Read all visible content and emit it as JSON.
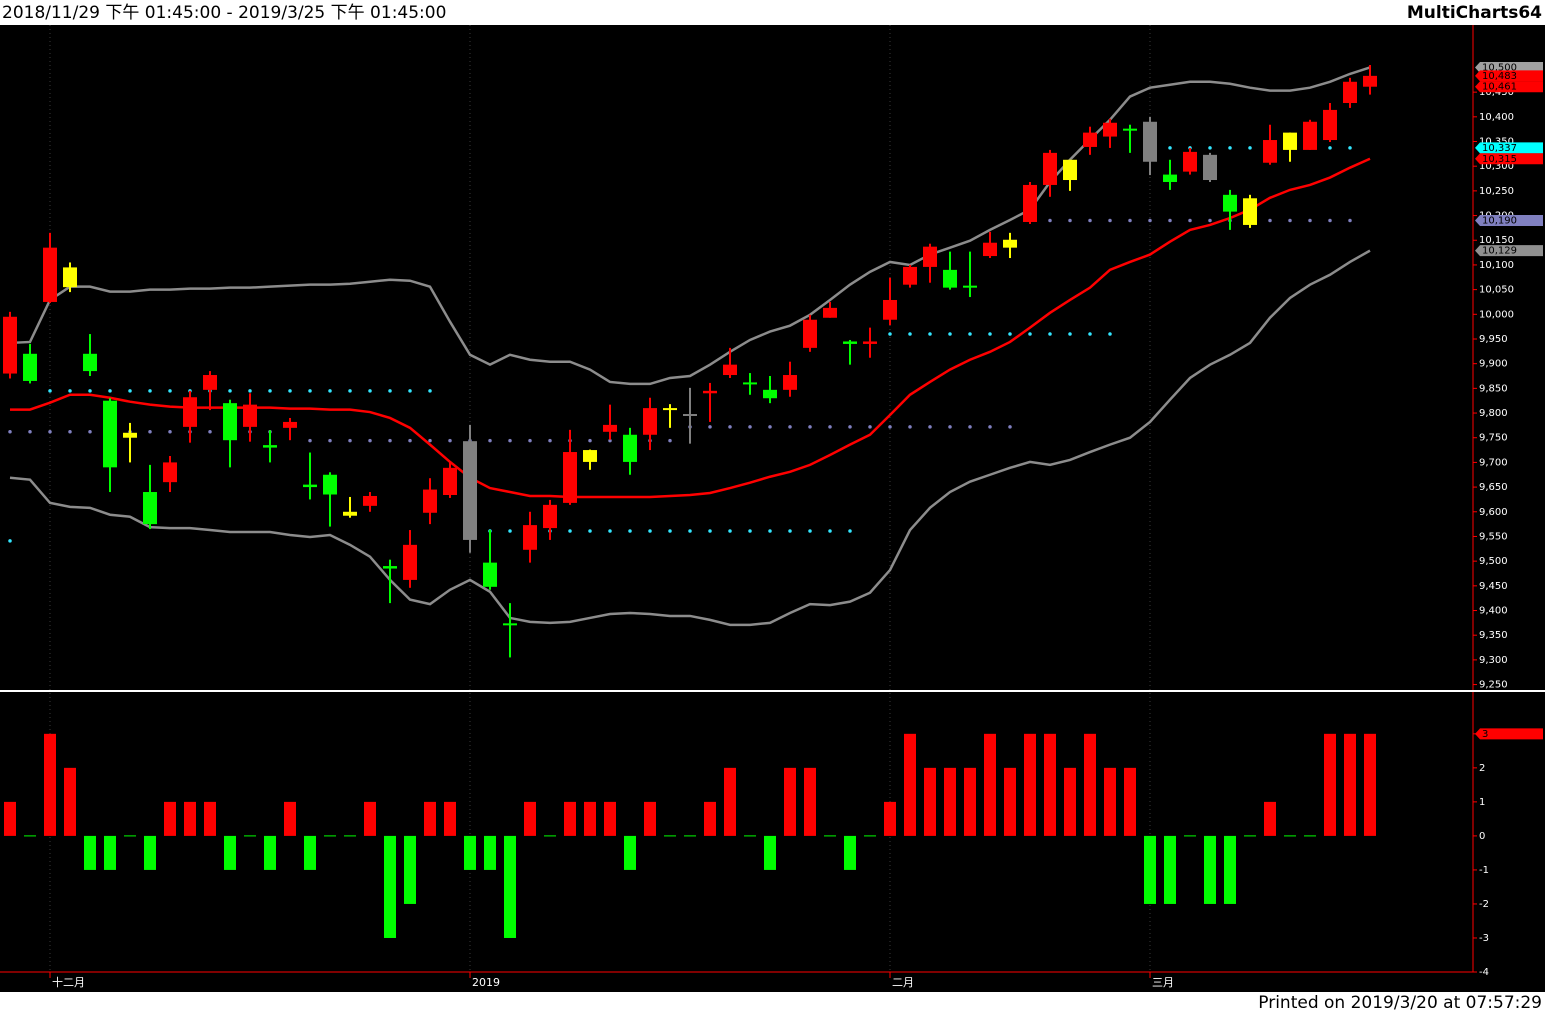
{
  "header": {
    "range": "2018/11/29 下午 01:45:00 - 2019/3/25 下午 01:45:00",
    "app": "MultiCharts64"
  },
  "footer": {
    "printed": "Printed on 2019/3/20 at 07:57:29"
  },
  "chart_data": [
    {
      "type": "candlestick",
      "categories": [
        null,
        null,
        "十二月",
        null,
        null,
        null,
        null,
        null,
        null,
        null,
        null,
        null,
        null,
        null,
        null,
        null,
        null,
        null,
        null,
        null,
        null,
        null,
        null,
        "2019",
        null,
        null,
        null,
        null,
        null,
        null,
        null,
        null,
        null,
        null,
        null,
        null,
        null,
        null,
        null,
        null,
        null,
        null,
        null,
        null,
        "二月",
        null,
        null,
        null,
        null,
        null,
        null,
        null,
        null,
        null,
        null,
        null,
        null,
        "三月",
        null,
        null,
        null,
        null,
        null,
        null,
        null,
        null,
        null,
        null,
        null
      ],
      "open": [
        9880,
        9920,
        10025,
        10055,
        9920,
        9825,
        9760,
        9640,
        9660,
        9772,
        9847,
        9820,
        9772,
        9735,
        9770,
        9655,
        9675,
        9592,
        9612,
        9490,
        9462,
        9598,
        9634,
        9743,
        9497,
        9375,
        9523,
        9567,
        9618,
        9701,
        9762,
        9756,
        9756,
        9805,
        9798,
        9840,
        9877,
        9862,
        9847,
        9847,
        9932,
        9993,
        9945,
        9940,
        9989,
        10060,
        10096,
        10090,
        10056,
        10118,
        10135,
        10187,
        10262,
        10272,
        10339,
        10360,
        10374,
        10390,
        10283,
        10289,
        10323,
        10242,
        10235,
        10307,
        10333,
        10333,
        10353,
        10428,
        10461
      ],
      "high": [
        10005,
        9940,
        10165,
        10105,
        9960,
        9830,
        9780,
        9695,
        9713,
        9845,
        9885,
        9827,
        9840,
        9765,
        9790,
        9720,
        9680,
        9630,
        9640,
        9503,
        9563,
        9668,
        9700,
        9776,
        9563,
        9415,
        9600,
        9624,
        9766,
        9726,
        9817,
        9770,
        9831,
        9818,
        9851,
        9861,
        9932,
        9881,
        9875,
        9904,
        9999,
        10025,
        9948,
        9973,
        10074,
        10100,
        10143,
        10127,
        10127,
        10167,
        10165,
        10268,
        10333,
        10313,
        10380,
        10396,
        10384,
        10400,
        10313,
        10337,
        10327,
        10252,
        10242,
        10384,
        10368,
        10394,
        10428,
        10479,
        10505
      ],
      "low": [
        9870,
        9860,
        10023,
        10045,
        9875,
        9640,
        9700,
        9565,
        9640,
        9740,
        9806,
        9690,
        9742,
        9700,
        9745,
        9625,
        9570,
        9588,
        9600,
        9415,
        9446,
        9575,
        9628,
        9517,
        9442,
        9305,
        9497,
        9543,
        9614,
        9685,
        9746,
        9675,
        9725,
        9770,
        9738,
        9782,
        9871,
        9837,
        9820,
        9833,
        9924,
        9993,
        9898,
        9912,
        9978,
        10054,
        10064,
        10050,
        10035,
        10114,
        10114,
        10183,
        10238,
        10250,
        10323,
        10337,
        10327,
        10282,
        10252,
        10283,
        10268,
        10171,
        10175,
        10303,
        10309,
        10333,
        10349,
        10418,
        10445
      ],
      "close": [
        9995,
        9865,
        10135,
        10095,
        9885,
        9690,
        9750,
        9575,
        9700,
        9832,
        9877,
        9745,
        9817,
        9730,
        9782,
        9650,
        9635,
        9600,
        9632,
        9485,
        9533,
        9645,
        9689,
        9543,
        9448,
        9372,
        9573,
        9614,
        9721,
        9725,
        9776,
        9701,
        9810,
        9808,
        9796,
        9845,
        9898,
        9860,
        9830,
        9877,
        9989,
        10013,
        9940,
        9945,
        10029,
        10096,
        10137,
        10054,
        10056,
        10145,
        10151,
        10262,
        10327,
        10313,
        10368,
        10388,
        10374,
        10309,
        10268,
        10329,
        10272,
        10208,
        10181,
        10353,
        10368,
        10390,
        10414,
        10471,
        10483
      ],
      "colors": [
        "#ff0000",
        "#00ff00",
        "#ff0000",
        "#ffff00",
        "#00ff00",
        "#00ff00",
        "#ffff00",
        "#00ff00",
        "#ff0000",
        "#ff0000",
        "#ff0000",
        "#00ff00",
        "#ff0000",
        "#00ff00",
        "#ff0000",
        "#00ff00",
        "#00ff00",
        "#ffff00",
        "#ff0000",
        "#00ff00",
        "#ff0000",
        "#ff0000",
        "#ff0000",
        "#808080",
        "#00ff00",
        "#00ff00",
        "#ff0000",
        "#ff0000",
        "#ff0000",
        "#ffff00",
        "#ff0000",
        "#00ff00",
        "#ff0000",
        "#ffff00",
        "#808080",
        "#ff0000",
        "#ff0000",
        "#00ff00",
        "#00ff00",
        "#ff0000",
        "#ff0000",
        "#ff0000",
        "#00ff00",
        "#ff0000",
        "#ff0000",
        "#ff0000",
        "#ff0000",
        "#00ff00",
        "#00ff00",
        "#ff0000",
        "#ffff00",
        "#ff0000",
        "#ff0000",
        "#ffff00",
        "#ff0000",
        "#ff0000",
        "#00ff00",
        "#808080",
        "#00ff00",
        "#ff0000",
        "#808080",
        "#00ff00",
        "#ffff00",
        "#ff0000",
        "#ffff00",
        "#ff0000",
        "#ff0000",
        "#ff0000",
        "#ff0000"
      ],
      "lines": [
        {
          "color": "#8c8c8c",
          "values": [
            9942,
            9944,
            10029,
            10056,
            10056,
            10046,
            10046,
            10050,
            10050,
            10052,
            10052,
            10054,
            10054,
            10056,
            10058,
            10060,
            10060,
            10062,
            10066,
            10070,
            10068,
            10056,
            9985,
            9918,
            9898,
            9918,
            9908,
            9904,
            9904,
            9888,
            9863,
            9859,
            9859,
            9871,
            9875,
            9898,
            9924,
            9948,
            9965,
            9977,
            9999,
            10029,
            10060,
            10086,
            10106,
            10100,
            10121,
            10135,
            10149,
            10171,
            10191,
            10212,
            10268,
            10313,
            10354,
            10394,
            10441,
            10459,
            10465,
            10471,
            10471,
            10467,
            10459,
            10453,
            10453,
            10459,
            10471,
            10487,
            10500
          ]
        },
        {
          "color": "#ff0000",
          "values": [
            9807,
            9807,
            9821,
            9837,
            9837,
            9831,
            9823,
            9817,
            9813,
            9811,
            9811,
            9811,
            9811,
            9811,
            9809,
            9809,
            9807,
            9807,
            9802,
            9790,
            9770,
            9736,
            9701,
            9669,
            9648,
            9640,
            9632,
            9632,
            9630,
            9630,
            9630,
            9630,
            9630,
            9632,
            9634,
            9638,
            9648,
            9659,
            9671,
            9681,
            9695,
            9715,
            9736,
            9756,
            9796,
            9837,
            9863,
            9888,
            9908,
            9924,
            9944,
            9973,
            10003,
            10029,
            10054,
            10090,
            10106,
            10121,
            10147,
            10171,
            10181,
            10195,
            10212,
            10236,
            10252,
            10262,
            10277,
            10297,
            10315
          ]
        },
        {
          "color": "#8c8c8c",
          "values": [
            9669,
            9665,
            9618,
            9610,
            9608,
            9594,
            9590,
            9569,
            9567,
            9567,
            9563,
            9559,
            9559,
            9559,
            9553,
            9549,
            9553,
            9533,
            9509,
            9462,
            9422,
            9413,
            9442,
            9462,
            9438,
            9385,
            9377,
            9375,
            9377,
            9385,
            9393,
            9395,
            9393,
            9389,
            9389,
            9381,
            9371,
            9371,
            9375,
            9395,
            9413,
            9411,
            9418,
            9436,
            9482,
            9563,
            9608,
            9640,
            9661,
            9675,
            9689,
            9701,
            9695,
            9705,
            9721,
            9736,
            9750,
            9782,
            9827,
            9871,
            9898,
            9918,
            9942,
            9993,
            10033,
            10060,
            10080,
            10106,
            10129
          ]
        }
      ],
      "levels": [
        {
          "value": 9541,
          "from": 0,
          "to": 1,
          "color": "#33e6ff"
        },
        {
          "value": 9845,
          "from": 2,
          "to": 22,
          "color": "#33e6ff"
        },
        {
          "value": 9762,
          "from": 0,
          "to": 14,
          "color": "#8080c0"
        },
        {
          "value": 9744,
          "from": 15,
          "to": 34,
          "color": "#8080c0"
        },
        {
          "value": 9561,
          "from": 24,
          "to": 43,
          "color": "#33e6ff"
        },
        {
          "value": 9772,
          "from": 34,
          "to": 51,
          "color": "#8080c0"
        },
        {
          "value": 9960,
          "from": 44,
          "to": 56,
          "color": "#33e6ff"
        },
        {
          "value": 10190,
          "from": 51,
          "to": 68,
          "color": "#8080c0"
        },
        {
          "value": 10337,
          "from": 57,
          "to": 68,
          "color": "#33e6ff"
        }
      ],
      "price_markers": [
        {
          "value": 10500,
          "label": "10,500",
          "color": "#a0a0a0"
        },
        {
          "value": 10483,
          "label": "10,483",
          "color": "#ff0000"
        },
        {
          "value": 10461,
          "label": "10,461",
          "color": "#ff0000"
        },
        {
          "value": 10337,
          "label": "10,337",
          "color": "#00ffff"
        },
        {
          "value": 10315,
          "label": "10,315",
          "color": "#ff0000"
        },
        {
          "value": 10190,
          "label": "10,190",
          "color": "#8080c0"
        },
        {
          "value": 10129,
          "label": "10,129",
          "color": "#909090"
        }
      ],
      "ylim": [
        9239,
        10586
      ],
      "yticks": [
        {
          "value": 9250,
          "label": "9,250"
        },
        {
          "value": 9300,
          "label": "9,300"
        },
        {
          "value": 9350,
          "label": "9,350"
        },
        {
          "value": 9400,
          "label": "9,400"
        },
        {
          "value": 9450,
          "label": "9,450"
        },
        {
          "value": 9500,
          "label": "9,500"
        },
        {
          "value": 9550,
          "label": "9,550"
        },
        {
          "value": 9600,
          "label": "9,600"
        },
        {
          "value": 9650,
          "label": "9,650"
        },
        {
          "value": 9700,
          "label": "9,700"
        },
        {
          "value": 9750,
          "label": "9,750"
        },
        {
          "value": 9800,
          "label": "9,800"
        },
        {
          "value": 9850,
          "label": "9,850"
        },
        {
          "value": 9900,
          "label": "9,900"
        },
        {
          "value": 9950,
          "label": "9,950"
        },
        {
          "value": 10000,
          "label": "10,000"
        },
        {
          "value": 10050,
          "label": "10,050"
        },
        {
          "value": 10100,
          "label": "10,100"
        },
        {
          "value": 10150,
          "label": "10,150"
        },
        {
          "value": 10200,
          "label": "10,200"
        },
        {
          "value": 10250,
          "label": "10,250"
        },
        {
          "value": 10300,
          "label": "10,300"
        },
        {
          "value": 10350,
          "label": "10,350"
        },
        {
          "value": 10400,
          "label": "10,400"
        },
        {
          "value": 10450,
          "label": "10,450"
        }
      ]
    },
    {
      "type": "bar",
      "values": [
        1,
        0,
        3,
        2,
        -1,
        -1,
        0,
        -1,
        1,
        1,
        1,
        -1,
        0,
        -1,
        1,
        -1,
        0,
        0,
        1,
        -3,
        -2,
        1,
        1,
        -1,
        -1,
        -3,
        1,
        0,
        1,
        1,
        1,
        -1,
        1,
        0,
        0,
        1,
        2,
        0,
        -1,
        2,
        2,
        0,
        -1,
        0,
        1,
        3,
        2,
        2,
        2,
        3,
        2,
        3,
        3,
        2,
        3,
        2,
        2,
        -2,
        -2,
        0,
        -2,
        -2,
        0,
        1,
        0,
        0,
        3,
        3,
        3
      ],
      "up_color": "#ff0000",
      "down_color": "#00ff00",
      "last_marker": {
        "value": 3,
        "color": "#ff0000"
      },
      "ylim": [
        -4,
        4.2
      ],
      "yticks": [
        3,
        2,
        1,
        0,
        -1,
        -2,
        -3,
        -4
      ]
    }
  ]
}
